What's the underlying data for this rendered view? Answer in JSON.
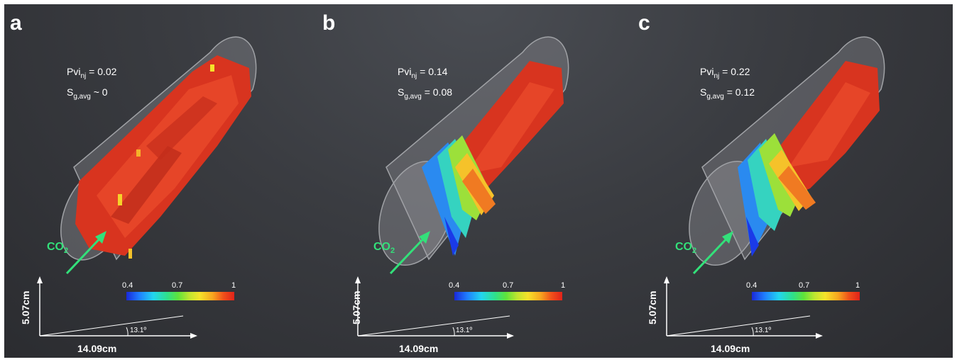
{
  "panels": [
    {
      "label": "a",
      "pvi_text": "Pvi",
      "pvi_sub": "nj",
      "pvi_value": " = 0.02",
      "sg_text": "S",
      "sg_sub": "g,avg",
      "sg_value": " ~ 0",
      "co2": "CO",
      "co2_sub": "2",
      "cb_min": "0.4",
      "cb_mid": "0.7",
      "cb_max": "1",
      "height": "5.07cm",
      "length": "14.09cm",
      "angle": "13.1º"
    },
    {
      "label": "b",
      "pvi_text": "Pvi",
      "pvi_sub": "nj",
      "pvi_value": " = 0.14",
      "sg_text": "S",
      "sg_sub": "g,avg",
      "sg_value": " = 0.08",
      "co2": "CO",
      "co2_sub": "2",
      "cb_min": "0.4",
      "cb_mid": "0.7",
      "cb_max": "1",
      "height": "5.07cm",
      "length": "14.09cm",
      "angle": "13.1º"
    },
    {
      "label": "c",
      "pvi_text": "Pvi",
      "pvi_sub": "nj",
      "pvi_value": " = 0.22",
      "sg_text": "S",
      "sg_sub": "g,avg",
      "sg_value": " = 0.12",
      "co2": "CO",
      "co2_sub": "2",
      "cb_min": "0.4",
      "cb_mid": "0.7",
      "cb_max": "1",
      "height": "5.07cm",
      "length": "14.09cm",
      "angle": "13.1º"
    }
  ],
  "colors": {
    "background": "#3a3c41",
    "saturation_red": "#e23a22",
    "arrow_green": "#33e07a",
    "cylinder_outline": "#9a9ca0"
  }
}
